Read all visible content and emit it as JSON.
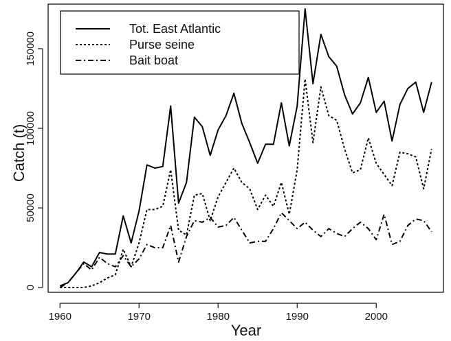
{
  "chart_data": {
    "type": "line",
    "title": "",
    "xlabel": "Year",
    "ylabel": "Catch (t)",
    "xlim": [
      1958.5,
      2008.5
    ],
    "ylim": [
      -3000,
      178000
    ],
    "x_ticks": [
      1960,
      1970,
      1980,
      1990,
      2000
    ],
    "y_ticks": [
      0,
      50000,
      100000,
      150000
    ],
    "x_tick_labels": [
      "1960",
      "1970",
      "1980",
      "1990",
      "2000"
    ],
    "y_tick_labels": [
      "0",
      "50000",
      "100000",
      "150000"
    ],
    "grid": false,
    "legend_position": "top-left",
    "x": [
      1960,
      1961,
      1962,
      1963,
      1964,
      1965,
      1966,
      1967,
      1968,
      1969,
      1970,
      1971,
      1972,
      1973,
      1974,
      1975,
      1976,
      1977,
      1978,
      1979,
      1980,
      1981,
      1982,
      1983,
      1984,
      1985,
      1986,
      1987,
      1988,
      1989,
      1990,
      1991,
      1992,
      1993,
      1994,
      1995,
      1996,
      1997,
      1998,
      1999,
      2000,
      2001,
      2002,
      2003,
      2004,
      2005,
      2006,
      2007
    ],
    "series": [
      {
        "name": "Tot. East Atlantic",
        "line_style": "solid",
        "color": "#000000",
        "values": [
          1000,
          3000,
          9000,
          16000,
          13000,
          22000,
          21000,
          21000,
          45000,
          28000,
          48000,
          77000,
          75000,
          76000,
          114000,
          53000,
          66000,
          107000,
          101000,
          83000,
          99000,
          108000,
          122000,
          103000,
          91000,
          78000,
          90000,
          90000,
          116000,
          89000,
          114000,
          175000,
          128000,
          159000,
          145000,
          139000,
          121000,
          109000,
          116000,
          132000,
          110000,
          117000,
          92000,
          115000,
          125000,
          129000,
          110000,
          129000
        ]
      },
      {
        "name": "Purse seine",
        "line_style": "dashed",
        "color": "#000000",
        "values": [
          0,
          0,
          0,
          0,
          1000,
          3000,
          6000,
          8000,
          24000,
          13000,
          28000,
          49000,
          49000,
          51000,
          74000,
          36000,
          33000,
          58000,
          59000,
          42000,
          57000,
          66000,
          75000,
          66000,
          62000,
          49000,
          58000,
          51000,
          66000,
          46000,
          74000,
          131000,
          91000,
          126000,
          108000,
          105000,
          87000,
          72000,
          74000,
          94000,
          78000,
          71000,
          64000,
          85000,
          84000,
          82000,
          62000,
          87000
        ]
      },
      {
        "name": "Bait boat",
        "line_style": "dashdot",
        "color": "#000000",
        "values": [
          0,
          3000,
          9000,
          15000,
          11000,
          19000,
          15000,
          13000,
          20000,
          13000,
          18000,
          27000,
          25000,
          25000,
          39000,
          16000,
          32000,
          42000,
          41000,
          44000,
          38000,
          39000,
          44000,
          36000,
          28000,
          29000,
          29000,
          37000,
          47000,
          42000,
          37000,
          41000,
          36000,
          32000,
          37000,
          34000,
          32000,
          37000,
          41000,
          37000,
          30000,
          46000,
          27000,
          29000,
          39000,
          43000,
          42000,
          35000
        ]
      }
    ]
  }
}
